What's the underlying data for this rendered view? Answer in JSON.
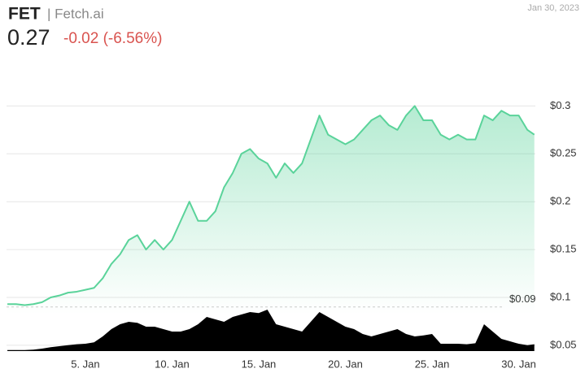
{
  "chart_data": {
    "type": "line",
    "symbol": "FET",
    "name": "| Fetch.ai",
    "price": "0.27",
    "change": "-0.02 (-6.56%)",
    "date": "Jan 30, 2023",
    "x": [
      0.5,
      1,
      1.5,
      2,
      2.5,
      3,
      3.5,
      4,
      4.5,
      5,
      5.5,
      6,
      6.5,
      7,
      7.5,
      8,
      8.5,
      9,
      9.5,
      10,
      10.5,
      11,
      11.5,
      12,
      12.5,
      13,
      13.5,
      14,
      14.5,
      15,
      15.5,
      16,
      16.5,
      17,
      17.5,
      18,
      18.5,
      19,
      19.5,
      20,
      20.5,
      21,
      21.5,
      22,
      22.5,
      23,
      23.5,
      24,
      24.5,
      25,
      25.5,
      26,
      26.5,
      27,
      27.5,
      28,
      28.5,
      29,
      29.5,
      30,
      30.5,
      30.9
    ],
    "series": [
      {
        "color": "#5ad39a",
        "values": [
          0.093,
          0.093,
          0.092,
          0.093,
          0.095,
          0.1,
          0.102,
          0.105,
          0.106,
          0.108,
          0.11,
          0.12,
          0.135,
          0.145,
          0.16,
          0.165,
          0.15,
          0.16,
          0.15,
          0.16,
          0.18,
          0.2,
          0.18,
          0.18,
          0.19,
          0.215,
          0.23,
          0.25,
          0.255,
          0.245,
          0.24,
          0.225,
          0.24,
          0.23,
          0.24,
          0.265,
          0.29,
          0.27,
          0.265,
          0.26,
          0.265,
          0.275,
          0.285,
          0.29,
          0.28,
          0.275,
          0.29,
          0.3,
          0.285,
          0.285,
          0.27,
          0.265,
          0.27,
          0.265,
          0.265,
          0.29,
          0.285,
          0.295,
          0.29,
          0.29,
          0.275,
          0.27
        ]
      },
      {
        "color": "#000000",
        "axis": "y2",
        "values": [
          2,
          2,
          2,
          3,
          5,
          8,
          10,
          12,
          14,
          15,
          18,
          30,
          45,
          55,
          60,
          58,
          50,
          50,
          45,
          40,
          40,
          45,
          55,
          70,
          65,
          60,
          70,
          75,
          80,
          78,
          85,
          55,
          50,
          45,
          40,
          60,
          80,
          70,
          60,
          50,
          45,
          35,
          30,
          35,
          40,
          45,
          35,
          30,
          32,
          35,
          15,
          15,
          15,
          14,
          16,
          55,
          40,
          25,
          20,
          15,
          12,
          14
        ]
      }
    ],
    "xlim": [
      0.45,
      30.96
    ],
    "xticks": [
      {
        "value": 5,
        "label": "5. Jan"
      },
      {
        "value": 10,
        "label": "10. Jan"
      },
      {
        "value": 15,
        "label": "15. Jan"
      },
      {
        "value": 20,
        "label": "20. Jan"
      },
      {
        "value": 25,
        "label": "25. Jan"
      },
      {
        "value": 30,
        "label": "30. Jan"
      }
    ],
    "ylim": [
      0.044,
      0.347
    ],
    "yticks": [
      {
        "value": 0.05,
        "label": "$0.05"
      },
      {
        "value": 0.1,
        "label": "$0.1"
      },
      {
        "value": 0.15,
        "label": "$0.15"
      },
      {
        "value": 0.2,
        "label": "$0.2"
      },
      {
        "value": 0.25,
        "label": "$0.25"
      },
      {
        "value": 0.3,
        "label": "$0.3"
      }
    ],
    "y2lim": [
      0,
      100
    ],
    "reference": {
      "value": 0.09,
      "label": "$0.09"
    },
    "grid": true
  }
}
